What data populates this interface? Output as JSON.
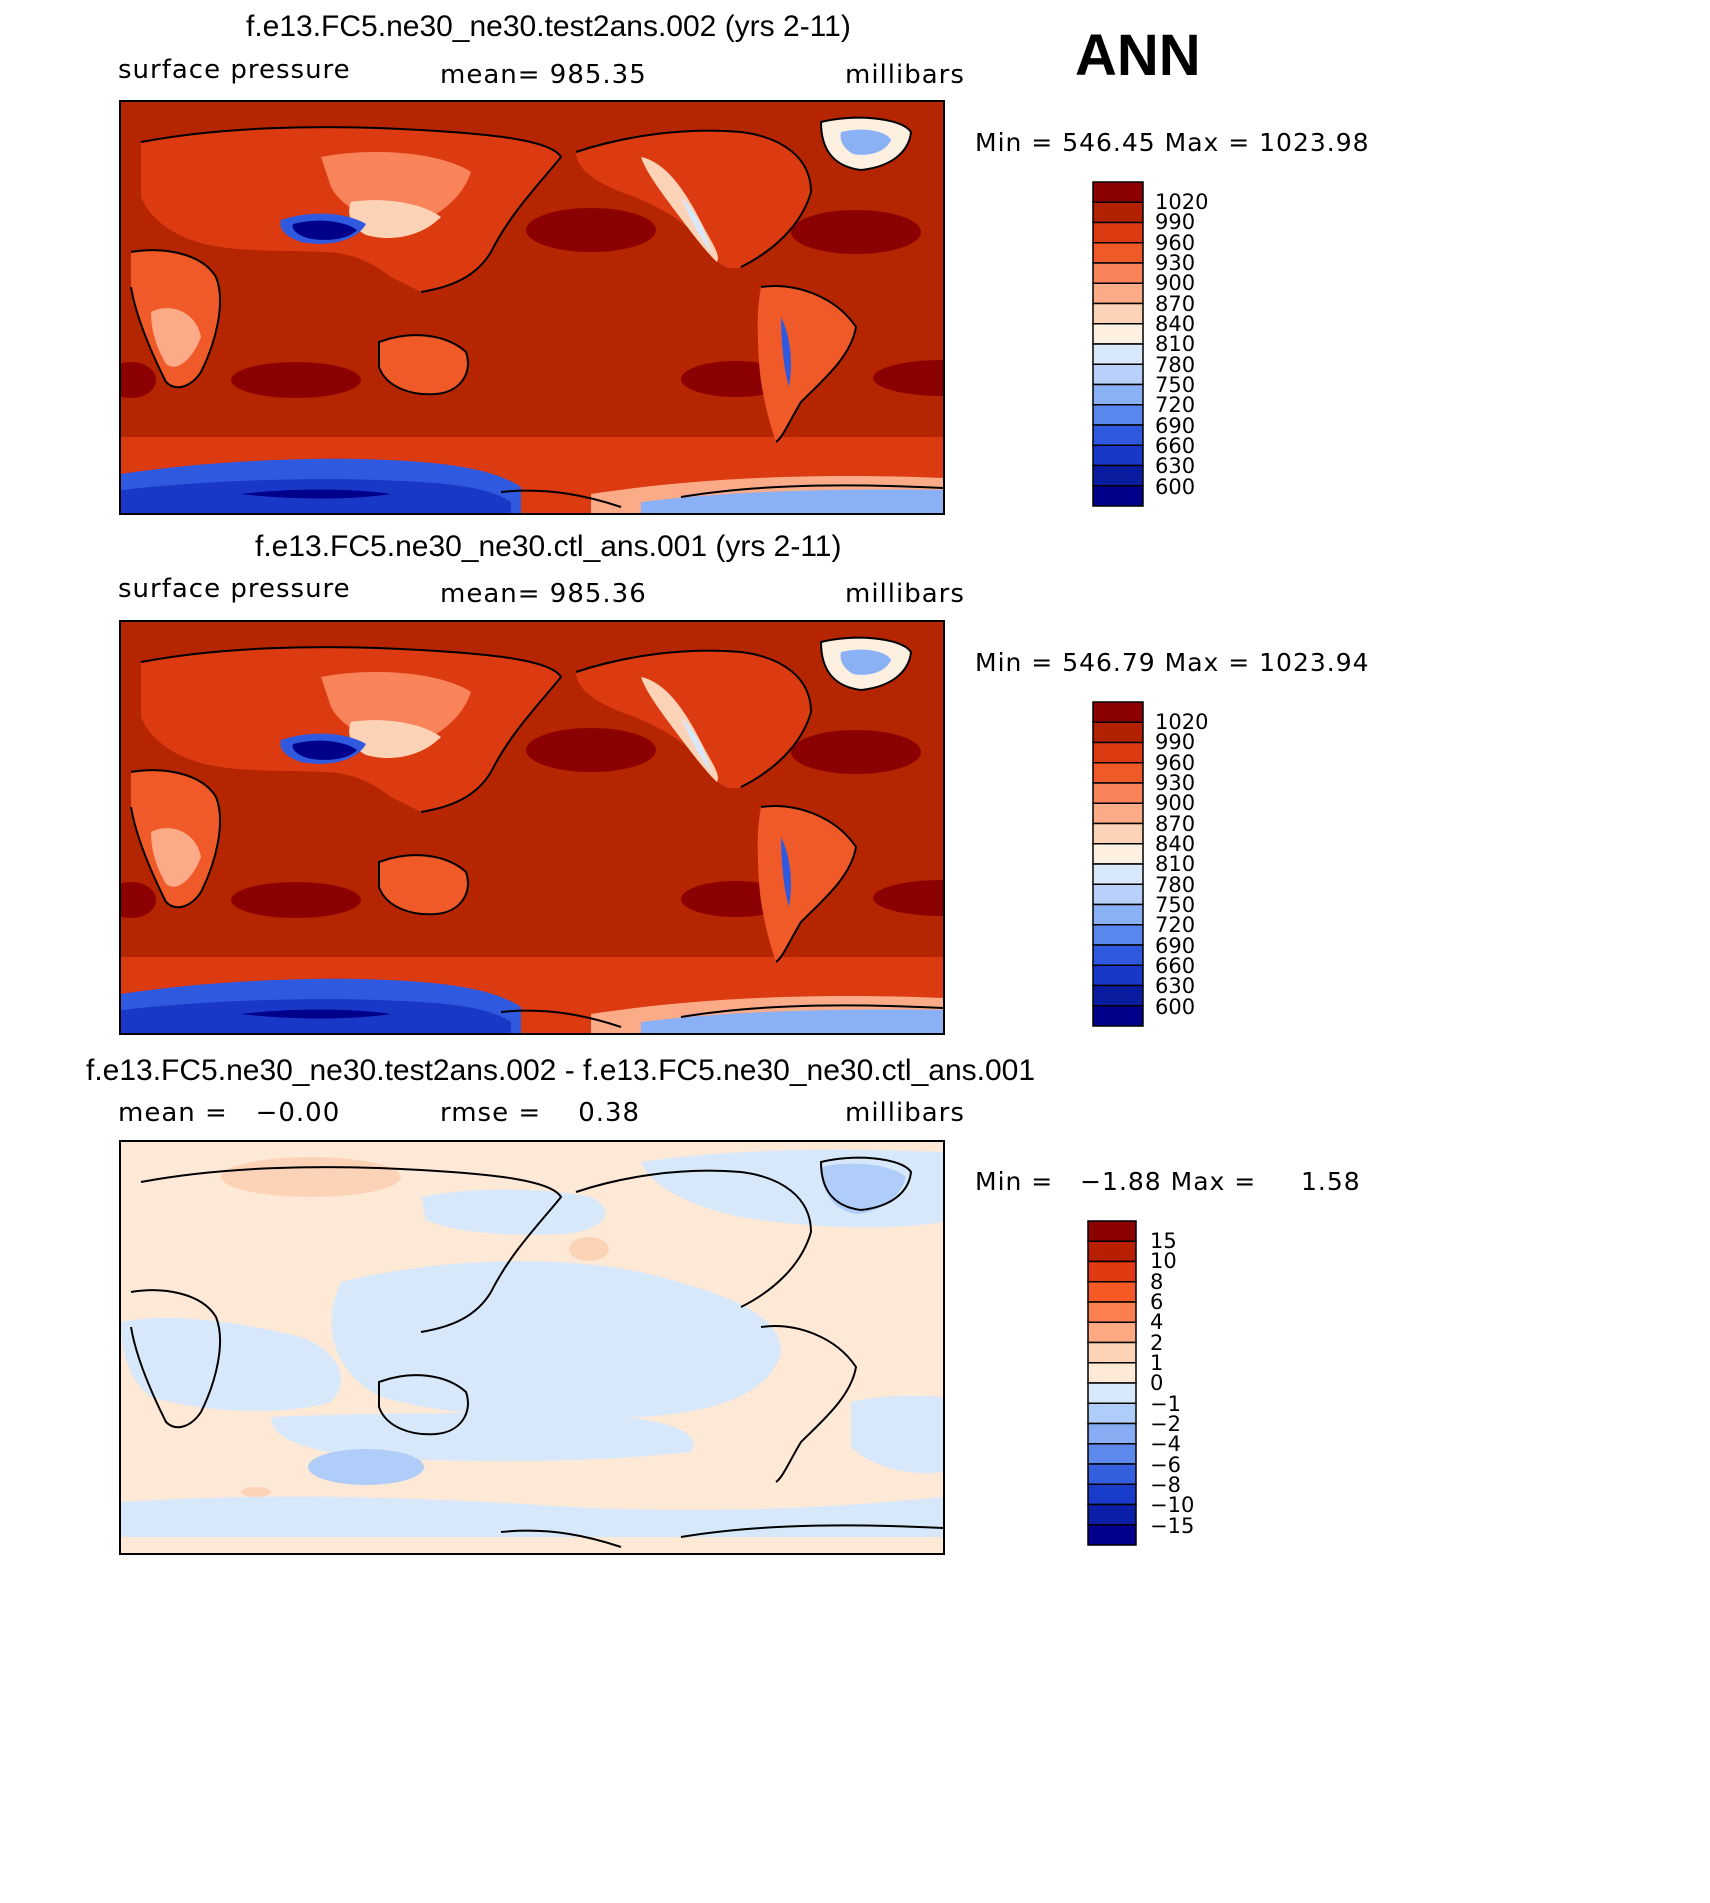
{
  "season": "ANN",
  "panels": [
    {
      "title": "f.e13.FC5.ne30_ne30.test2ans.002 (yrs 2-11)",
      "left_label": "surface pressure",
      "center_label": "mean= 985.35",
      "right_label": "millibars",
      "minmax": "Min = 546.45 Max = 1023.98",
      "colorbar_levels": [
        "1020",
        "990",
        "960",
        "930",
        "900",
        "870",
        "840",
        "810",
        "780",
        "750",
        "720",
        "690",
        "660",
        "630",
        "600"
      ],
      "colors": [
        "#8b0000",
        "#b22200",
        "#dc3a10",
        "#f05a28",
        "#f9845a",
        "#fcab88",
        "#fdd3b8",
        "#fef0e0",
        "#d8e8fb",
        "#b8d0fa",
        "#8ab0f5",
        "#5888ee",
        "#2f5ae0",
        "#1a38c8",
        "#0a1ca0",
        "#00008b"
      ]
    },
    {
      "title": "f.e13.FC5.ne30_ne30.ctl_ans.001 (yrs 2-11)",
      "left_label": "surface pressure",
      "center_label": "mean= 985.36",
      "right_label": "millibars",
      "minmax": "Min = 546.79 Max = 1023.94",
      "colorbar_levels": [
        "1020",
        "990",
        "960",
        "930",
        "900",
        "870",
        "840",
        "810",
        "780",
        "750",
        "720",
        "690",
        "660",
        "630",
        "600"
      ],
      "colors": [
        "#8b0000",
        "#b22200",
        "#dc3a10",
        "#f05a28",
        "#f9845a",
        "#fcab88",
        "#fdd3b8",
        "#fef0e0",
        "#d8e8fb",
        "#b8d0fa",
        "#8ab0f5",
        "#5888ee",
        "#2f5ae0",
        "#1a38c8",
        "#0a1ca0",
        "#00008b"
      ]
    },
    {
      "title": "f.e13.FC5.ne30_ne30.test2ans.002 - f.e13.FC5.ne30_ne30.ctl_ans.001",
      "left_label": "mean =   −0.00",
      "center_label": "rmse =    0.38",
      "right_label": "millibars",
      "minmax": "Min =   −1.88 Max =     1.58",
      "colorbar_levels": [
        "15",
        "10",
        "8",
        "6",
        "4",
        "2",
        "1",
        "0",
        "−1",
        "−2",
        "−4",
        "−6",
        "−8",
        "−10",
        "−15"
      ],
      "colors": [
        "#8b0000",
        "#b81e00",
        "#e03a10",
        "#f55a25",
        "#fa8050",
        "#fca880",
        "#fdd3b8",
        "#fee8d6",
        "#d8e8fb",
        "#b0ccf8",
        "#88adf3",
        "#5d88ec",
        "#3460df",
        "#1a3ccb",
        "#0a1ea8",
        "#00008b"
      ]
    }
  ]
}
